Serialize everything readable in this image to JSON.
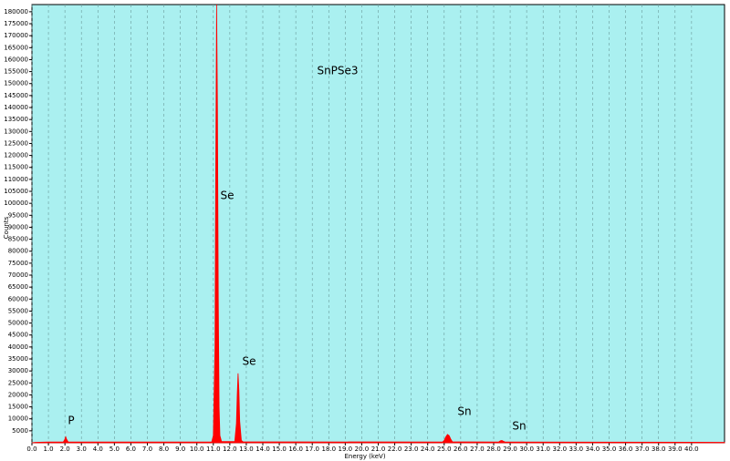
{
  "chart_data": {
    "type": "area",
    "x_label": "Energy (keV)",
    "y_label": "Counts",
    "annotations": [
      "SnPSe3",
      "Se",
      "Se",
      "Sn",
      "Sn",
      "P"
    ],
    "background": "#aaf0f0",
    "grid": true,
    "xlim": [
      0,
      42
    ],
    "ylim": [
      0,
      183000
    ],
    "xticks": [
      {
        "value": 0,
        "label": "0.0"
      },
      {
        "value": 1,
        "label": "1.0"
      },
      {
        "value": 2,
        "label": "2.0"
      },
      {
        "value": 3,
        "label": "3.0"
      },
      {
        "value": 4,
        "label": "4.0"
      },
      {
        "value": 5,
        "label": "5.0"
      },
      {
        "value": 6,
        "label": "6.0"
      },
      {
        "value": 7,
        "label": "7.0"
      },
      {
        "value": 8,
        "label": "8.0"
      },
      {
        "value": 9,
        "label": "9.0"
      },
      {
        "value": 10,
        "label": "10.0"
      },
      {
        "value": 11,
        "label": "11.0"
      },
      {
        "value": 12,
        "label": "12.0"
      },
      {
        "value": 13,
        "label": "13.0"
      },
      {
        "value": 14,
        "label": "14.0"
      },
      {
        "value": 15,
        "label": "15.0"
      },
      {
        "value": 16,
        "label": "16.0"
      },
      {
        "value": 17,
        "label": "17.0"
      },
      {
        "value": 18,
        "label": "18.0"
      },
      {
        "value": 19,
        "label": "19.0"
      },
      {
        "value": 20,
        "label": "20.0"
      },
      {
        "value": 21,
        "label": "21.0"
      },
      {
        "value": 22,
        "label": "22.0"
      },
      {
        "value": 23,
        "label": "23.0"
      },
      {
        "value": 24,
        "label": "24.0"
      },
      {
        "value": 25,
        "label": "25.0"
      },
      {
        "value": 26,
        "label": "26.0"
      },
      {
        "value": 27,
        "label": "27.0"
      },
      {
        "value": 28,
        "label": "28.0"
      },
      {
        "value": 29,
        "label": "29.0"
      },
      {
        "value": 30,
        "label": "30.0"
      },
      {
        "value": 31,
        "label": "31.0"
      },
      {
        "value": 32,
        "label": "32.0"
      },
      {
        "value": 33,
        "label": "33.0"
      },
      {
        "value": 34,
        "label": "34.0"
      },
      {
        "value": 35,
        "label": "35.0"
      },
      {
        "value": 36,
        "label": "36.0"
      },
      {
        "value": 37,
        "label": "37.0"
      },
      {
        "value": 38,
        "label": "38.0"
      },
      {
        "value": 39,
        "label": "39.0"
      },
      {
        "value": 40,
        "label": "40.0"
      }
    ],
    "yticks": [
      5000,
      10000,
      15000,
      20000,
      25000,
      30000,
      35000,
      40000,
      45000,
      50000,
      55000,
      60000,
      65000,
      70000,
      75000,
      80000,
      85000,
      90000,
      95000,
      100000,
      105000,
      110000,
      115000,
      120000,
      125000,
      130000,
      135000,
      140000,
      145000,
      150000,
      155000,
      160000,
      165000,
      170000,
      175000,
      180000
    ],
    "series": [
      {
        "name": "SnPSe3",
        "color": "#ff0000",
        "x": [
          0.0,
          0.2,
          1.0,
          1.9,
          2.0,
          2.05,
          2.1,
          2.2,
          3.0,
          10.9,
          11.0,
          11.1,
          11.15,
          11.2,
          11.25,
          11.3,
          11.35,
          11.4,
          11.5,
          12.3,
          12.4,
          12.45,
          12.5,
          12.55,
          12.6,
          12.7,
          12.8,
          24.9,
          25.0,
          25.1,
          25.2,
          25.3,
          25.4,
          25.5,
          28.3,
          28.4,
          28.5,
          28.6,
          28.7,
          42.0
        ],
        "values": [
          0,
          200,
          300,
          300,
          1500,
          2500,
          1500,
          300,
          300,
          300,
          3000,
          40000,
          120000,
          183000,
          140000,
          60000,
          15000,
          3000,
          500,
          500,
          8000,
          20000,
          29000,
          22000,
          9000,
          1000,
          400,
          300,
          1000,
          2500,
          3500,
          3000,
          1500,
          400,
          300,
          800,
          1000,
          600,
          300,
          200
        ]
      }
    ]
  }
}
